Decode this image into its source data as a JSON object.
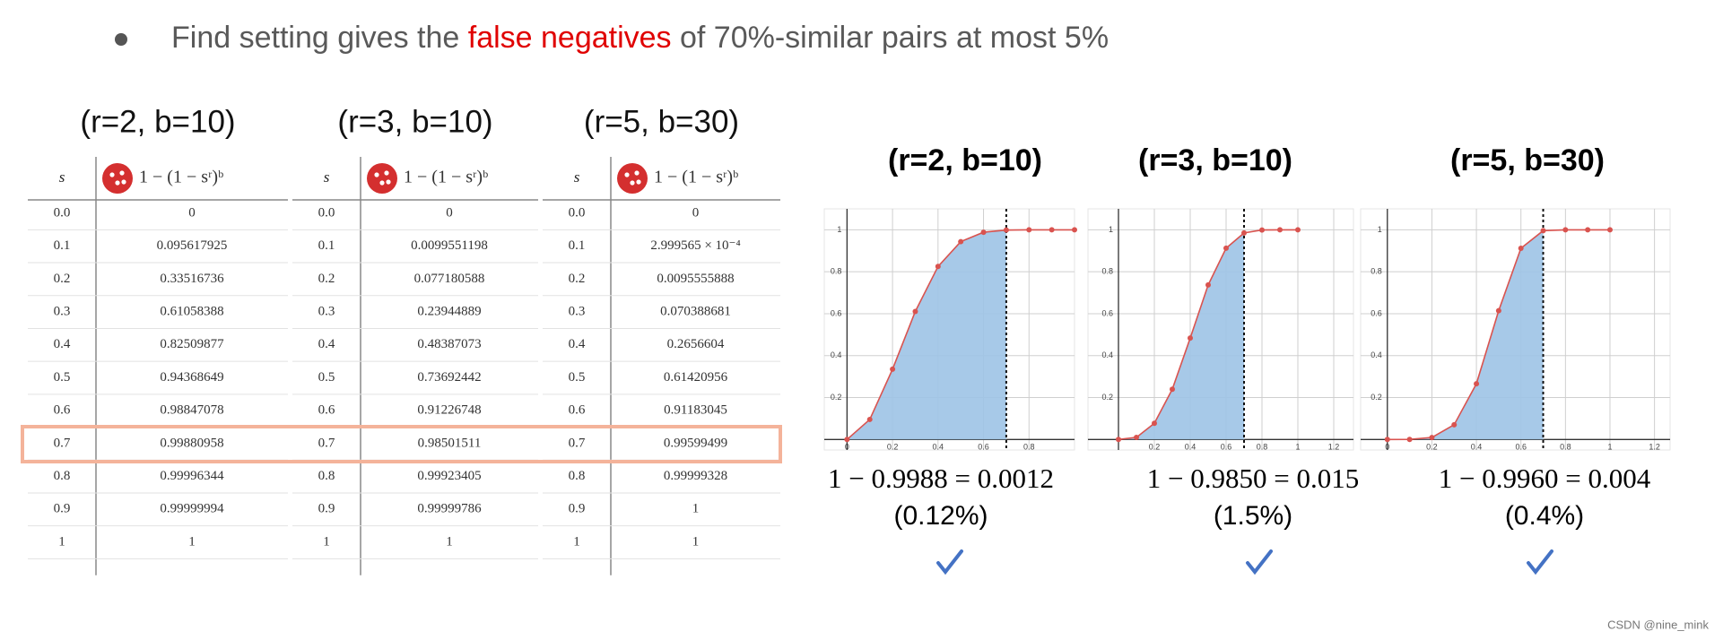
{
  "header": {
    "parts": [
      "Find setting gives the ",
      "false negatives",
      " of 70%-similar pairs at most 5%"
    ]
  },
  "tables": [
    {
      "title": "(r=2, b=10)",
      "columns": [
        "s",
        "1 − (1 − sʳ)ᵇ"
      ],
      "rows": [
        [
          "0.0",
          "0"
        ],
        [
          "0.1",
          "0.095617925"
        ],
        [
          "0.2",
          "0.33516736"
        ],
        [
          "0.3",
          "0.61058388"
        ],
        [
          "0.4",
          "0.82509877"
        ],
        [
          "0.5",
          "0.94368649"
        ],
        [
          "0.6",
          "0.98847078"
        ],
        [
          "0.7",
          "0.99880958"
        ],
        [
          "0.8",
          "0.99996344"
        ],
        [
          "0.9",
          "0.99999994"
        ],
        [
          "1",
          "1"
        ]
      ]
    },
    {
      "title": "(r=3, b=10)",
      "columns": [
        "s",
        "1 − (1 − sʳ)ᵇ"
      ],
      "rows": [
        [
          "0.0",
          "0"
        ],
        [
          "0.1",
          "0.0099551198"
        ],
        [
          "0.2",
          "0.077180588"
        ],
        [
          "0.3",
          "0.23944889"
        ],
        [
          "0.4",
          "0.48387073"
        ],
        [
          "0.5",
          "0.73692442"
        ],
        [
          "0.6",
          "0.91226748"
        ],
        [
          "0.7",
          "0.98501511"
        ],
        [
          "0.8",
          "0.99923405"
        ],
        [
          "0.9",
          "0.99999786"
        ],
        [
          "1",
          "1"
        ]
      ]
    },
    {
      "title": "(r=5, b=30)",
      "columns": [
        "s",
        "1 − (1 − sʳ)ᵇ"
      ],
      "rows": [
        [
          "0.0",
          "0"
        ],
        [
          "0.1",
          "2.999565 × 10⁻⁴"
        ],
        [
          "0.2",
          "0.0095555888"
        ],
        [
          "0.3",
          "0.070388681"
        ],
        [
          "0.4",
          "0.2656604"
        ],
        [
          "0.5",
          "0.61420956"
        ],
        [
          "0.6",
          "0.91183045"
        ],
        [
          "0.7",
          "0.99599499"
        ],
        [
          "0.8",
          "0.99999328"
        ],
        [
          "0.9",
          "1"
        ],
        [
          "1",
          "1"
        ]
      ]
    }
  ],
  "chart_data": [
    {
      "type": "line",
      "title": "(r=2, b=10)",
      "x": [
        0,
        0.1,
        0.2,
        0.3,
        0.4,
        0.5,
        0.6,
        0.7,
        0.8,
        0.9,
        1
      ],
      "values": [
        0,
        0.095617925,
        0.33516736,
        0.61058388,
        0.82509877,
        0.94368649,
        0.98847078,
        0.99880958,
        0.99996344,
        0.99999994,
        1
      ],
      "threshold": 0.7,
      "xlim": [
        -0.1,
        1.0
      ],
      "ylim": [
        -0.05,
        1.1
      ],
      "xticks": [
        0,
        0.2,
        0.4,
        0.6,
        0.8
      ],
      "yticks": [
        0.2,
        0.4,
        0.6,
        0.8,
        1
      ],
      "color": "#d9534f",
      "fill": "#9dc3e6",
      "grid": true
    },
    {
      "type": "line",
      "title": "(r=3, b=10)",
      "x": [
        0,
        0.1,
        0.2,
        0.3,
        0.4,
        0.5,
        0.6,
        0.7,
        0.8,
        0.9,
        1
      ],
      "values": [
        0,
        0.0099551198,
        0.077180588,
        0.23944889,
        0.48387073,
        0.73692442,
        0.91226748,
        0.98501511,
        0.99923405,
        0.99999786,
        1
      ],
      "threshold": 0.7,
      "xlim": [
        -0.17,
        1.31
      ],
      "ylim": [
        -0.05,
        1.1
      ],
      "xticks": [
        0.2,
        0.4,
        0.6,
        0.8,
        1,
        1.2
      ],
      "yticks": [
        0.2,
        0.4,
        0.6,
        0.8,
        1
      ],
      "color": "#d9534f",
      "fill": "#9dc3e6",
      "grid": true
    },
    {
      "type": "line",
      "title": "(r=5, b=30)",
      "x": [
        0,
        0.1,
        0.2,
        0.3,
        0.4,
        0.5,
        0.6,
        0.7,
        0.8,
        0.9,
        1
      ],
      "values": [
        0,
        0.0002999565,
        0.0095555888,
        0.070388681,
        0.2656604,
        0.61420956,
        0.91183045,
        0.99599499,
        0.99999328,
        1,
        1
      ],
      "threshold": 0.7,
      "xlim": [
        -0.12,
        1.27
      ],
      "ylim": [
        -0.05,
        1.1
      ],
      "xticks": [
        0,
        0.2,
        0.4,
        0.6,
        0.8,
        1,
        1.2
      ],
      "yticks": [
        0.2,
        0.4,
        0.6,
        0.8,
        1
      ],
      "color": "#d9534f",
      "fill": "#9dc3e6",
      "grid": true
    }
  ],
  "results": [
    {
      "equation": "1 − 0.9988 = 0.0012",
      "percent": "(0.12%)"
    },
    {
      "equation": "1 − 0.9850 = 0.015",
      "percent": "(1.5%)"
    },
    {
      "equation": "1 − 0.9960 = 0.004",
      "percent": "(0.4%)"
    }
  ],
  "footer": "CSDN @nine_mink"
}
